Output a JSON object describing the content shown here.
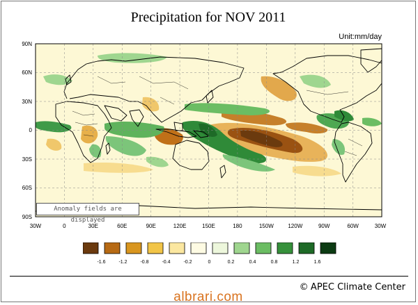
{
  "title": "Precipitation for NOV 2011",
  "unit": "Unit:mm/day",
  "note": "Anomaly fields are displayed",
  "credit": "APEC Climate Center",
  "watermark": "albrari.com",
  "map": {
    "lat_labels": [
      "90N",
      "60N",
      "30N",
      "0",
      "30S",
      "60S",
      "90S"
    ],
    "lon_labels": [
      "30W",
      "0",
      "30E",
      "60E",
      "90E",
      "120E",
      "150E",
      "180",
      "150W",
      "120W",
      "90W",
      "60W",
      "30W"
    ]
  },
  "legend": {
    "colors": [
      "#6b3a0e",
      "#b76a14",
      "#d9961f",
      "#f2c547",
      "#fbe7a0",
      "#fefbe3",
      "#edf7dc",
      "#9fd68f",
      "#6bbd63",
      "#36913b",
      "#1e6a27",
      "#0c3b13"
    ],
    "labels": [
      "-1.6",
      "-1.2",
      "-0.8",
      "-0.4",
      "-0.2",
      "0",
      "0.2",
      "0.4",
      "0.8",
      "1.2",
      "1.6"
    ]
  }
}
